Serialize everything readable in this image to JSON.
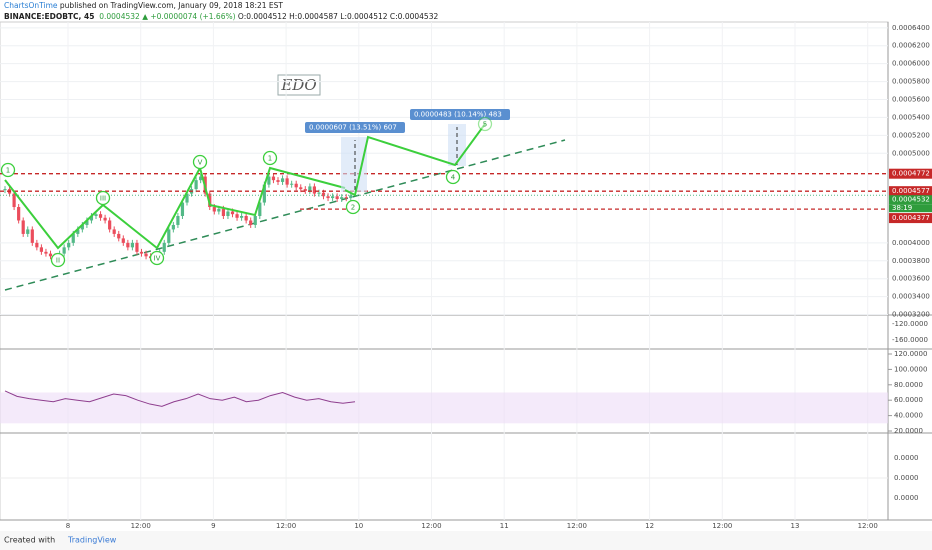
{
  "header": {
    "author": "ChartsOnTime",
    "published": " published on TradingView.com, January 09, 2018 18:21 EST",
    "symbol": "BINANCE:EDOBTC, 45",
    "last": "0.0004532",
    "change": "▲ +0.0000074 (+1.66%)",
    "ohlc": "O:0.0004512 H:0.0004587 L:0.0004512 C:0.0004532"
  },
  "chart_data": {
    "type": "candlestick",
    "annotation": "EDO",
    "closes": [
      0.00046,
      0.000455,
      0.00044,
      0.000425,
      0.00041,
      0.000415,
      0.0004,
      0.000395,
      0.00039,
      0.000388,
      0.000385,
      0.000382,
      0.000388,
      0.000395,
      0.0004,
      0.00041,
      0.000415,
      0.00042,
      0.000425,
      0.00043,
      0.000432,
      0.000428,
      0.000425,
      0.000415,
      0.00041,
      0.000405,
      0.0004,
      0.000395,
      0.0004,
      0.00039,
      0.000388,
      0.000385,
      0.000383,
      0.000381,
      0.00039,
      0.0004,
      0.000415,
      0.00042,
      0.00043,
      0.000445,
      0.000455,
      0.00046,
      0.00047,
      0.000474,
      0.000455,
      0.00044,
      0.000435,
      0.000438,
      0.00043,
      0.000435,
      0.000432,
      0.000428,
      0.00043,
      0.000425,
      0.00042,
      0.00043,
      0.000445,
      0.000465,
      0.000474,
      0.00047,
      0.000468,
      0.000472,
      0.000465,
      0.000466,
      0.000462,
      0.00046,
      0.000458,
      0.000463,
      0.000455,
      0.000456,
      0.000452,
      0.00045,
      0.000452,
      0.000449,
      0.000451,
      0.00045,
      0.000453
    ],
    "ylim": [
      0.0003195,
      0.0006465
    ],
    "yticks": [
      {
        "value": 0.00064,
        "label": "0.0006400"
      },
      {
        "value": 0.00062,
        "label": "0.0006200"
      },
      {
        "value": 0.0006,
        "label": "0.0006000"
      },
      {
        "value": 0.00058,
        "label": "0.0005800"
      },
      {
        "value": 0.00056,
        "label": "0.0005600"
      },
      {
        "value": 0.00054,
        "label": "0.0005400"
      },
      {
        "value": 0.00052,
        "label": "0.0005200"
      },
      {
        "value": 0.0005,
        "label": "0.0005000"
      },
      {
        "value": 0.0004,
        "label": "0.0004000"
      },
      {
        "value": 0.00038,
        "label": "0.0003800"
      },
      {
        "value": 0.00036,
        "label": "0.0003600"
      },
      {
        "value": 0.00034,
        "label": "0.0003400"
      },
      {
        "value": 0.00032,
        "label": "0.0003200"
      }
    ],
    "levels": [
      {
        "value": 0.0004772,
        "label": "0.0004772"
      },
      {
        "value": 0.0004577,
        "label": "0.0004577"
      },
      {
        "value": 0.0004377,
        "label": "0.0004377"
      }
    ],
    "current": {
      "value": 0.0004532,
      "label": "0.0004532",
      "timer": "38:19"
    },
    "measures": [
      "0.0000607 (13.51%) 607",
      "0.0000483 (10.14%) 483"
    ],
    "waves": [
      "1",
      "II",
      "III",
      "IV",
      "V",
      "1",
      "2",
      "4",
      "5"
    ],
    "xlabels": [
      "8",
      "12:00",
      "9",
      "12:00",
      "10",
      "12:00",
      "11",
      "12:00",
      "12",
      "12:00",
      "13",
      "12:00"
    ],
    "pane2_ticks": [
      "-120.0000",
      "-160.0000"
    ],
    "rsi": {
      "values": [
        72,
        65,
        62,
        60,
        58,
        62,
        60,
        58,
        63,
        68,
        66,
        60,
        55,
        52,
        58,
        62,
        68,
        62,
        60,
        64,
        58,
        60,
        66,
        70,
        64,
        60,
        62,
        58,
        56,
        58
      ],
      "ylim": [
        20,
        120
      ],
      "yticks": [
        {
          "value": 120,
          "label": "120.0000"
        },
        {
          "value": 100,
          "label": "100.0000"
        },
        {
          "value": 80,
          "label": "80.0000"
        },
        {
          "value": 60,
          "label": "60.0000"
        },
        {
          "value": 40,
          "label": "40.0000"
        },
        {
          "value": 20,
          "label": "20.0000"
        }
      ],
      "band": [
        30,
        70
      ]
    },
    "macd_ticks": [
      "0.0000",
      "0.0000",
      "0.0000"
    ]
  },
  "footer": {
    "created": "Created with",
    "brand": "TradingView"
  }
}
